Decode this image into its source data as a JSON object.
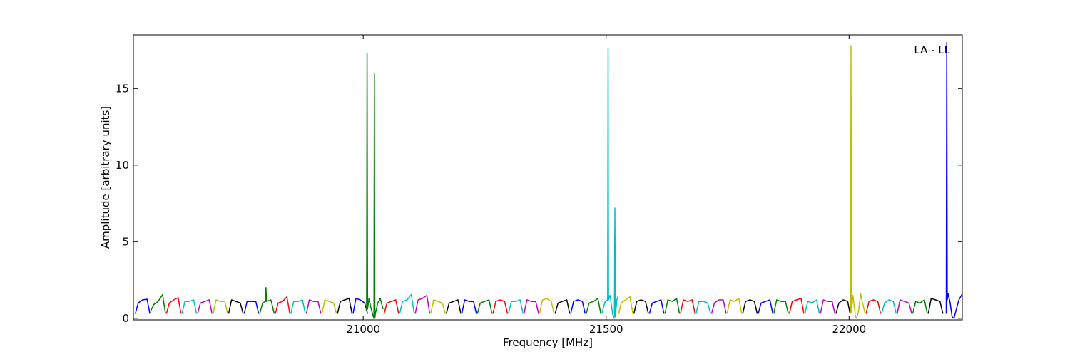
{
  "chart_data": {
    "type": "line",
    "xlabel": "Frequency [MHz]",
    "ylabel": "Amplitude [arbitrary units]",
    "annotation": "LA - LL",
    "xlim": [
      20527,
      22233
    ],
    "ylim": [
      -0.1,
      18.5
    ],
    "xticks": [
      21000,
      21500,
      22000
    ],
    "yticks": [
      0,
      5,
      10,
      15
    ],
    "series": [
      {
        "color": "#0000ff",
        "x": [
          20531,
          20537,
          20546,
          20555,
          20561
        ],
        "values": [
          0.3,
          1.0,
          1.2,
          1.25,
          0.3
        ]
      },
      {
        "color": "#008000",
        "x": [
          20563,
          20569,
          20578,
          20587,
          20593
        ],
        "values": [
          0.5,
          0.9,
          1.1,
          1.55,
          0.3
        ]
      },
      {
        "color": "#ff0000",
        "x": [
          20595,
          20601,
          20610,
          20619,
          20625
        ],
        "values": [
          0.3,
          1.0,
          1.2,
          1.35,
          0.3
        ]
      },
      {
        "color": "#00bfbf",
        "x": [
          20627,
          20633,
          20642,
          20651,
          20657
        ],
        "values": [
          0.3,
          1.1,
          1.1,
          1.2,
          0.3
        ]
      },
      {
        "color": "#bf00bf",
        "x": [
          20659,
          20665,
          20674,
          20683,
          20689
        ],
        "values": [
          0.3,
          1.0,
          1.1,
          1.2,
          0.3
        ]
      },
      {
        "color": "#bfbf00",
        "x": [
          20691,
          20697,
          20706,
          20715,
          20721
        ],
        "values": [
          0.3,
          1.2,
          1.1,
          1.1,
          0.3
        ]
      },
      {
        "color": "#000000",
        "x": [
          20723,
          20729,
          20738,
          20747,
          20753
        ],
        "values": [
          0.3,
          1.2,
          1.1,
          1.0,
          0.3
        ]
      },
      {
        "color": "#0000ff",
        "x": [
          20755,
          20761,
          20770,
          20779,
          20785
        ],
        "values": [
          0.3,
          1.1,
          1.1,
          1.1,
          0.3
        ]
      },
      {
        "color": "#008000",
        "x": [
          20787,
          20793,
          20799,
          20800,
          20801,
          20810,
          20817
        ],
        "values": [
          0.3,
          1.0,
          1.1,
          2.0,
          1.1,
          1.2,
          0.3
        ]
      },
      {
        "color": "#ff0000",
        "x": [
          20819,
          20825,
          20834,
          20843,
          20849
        ],
        "values": [
          0.3,
          1.0,
          1.1,
          1.4,
          0.3
        ]
      },
      {
        "color": "#00bfbf",
        "x": [
          20851,
          20857,
          20866,
          20875,
          20881
        ],
        "values": [
          0.3,
          1.1,
          1.1,
          1.2,
          0.3
        ]
      },
      {
        "color": "#bf00bf",
        "x": [
          20883,
          20889,
          20898,
          20907,
          20913
        ],
        "values": [
          0.3,
          1.2,
          1.1,
          1.1,
          0.3
        ]
      },
      {
        "color": "#bfbf00",
        "x": [
          20915,
          20921,
          20930,
          20939,
          20945
        ],
        "values": [
          0.3,
          1.2,
          1.1,
          1.0,
          0.3
        ]
      },
      {
        "color": "#000000",
        "x": [
          20947,
          20953,
          20962,
          20971,
          20977
        ],
        "values": [
          0.3,
          1.1,
          1.2,
          1.3,
          0.3
        ]
      },
      {
        "color": "#0000ff",
        "x": [
          20979,
          20985,
          20994,
          21003,
          21009
        ],
        "values": [
          0.3,
          1.3,
          1.2,
          1.0,
          0.3
        ]
      },
      {
        "color": "#008000",
        "x": [
          21007,
          21008,
          21009,
          21012,
          21015,
          21020,
          21022,
          21023,
          21024,
          21025,
          21030,
          21035,
          21041
        ],
        "values": [
          0.5,
          17.3,
          0.6,
          1.3,
          0.8,
          0.2,
          0.0,
          16.0,
          0.0,
          0.3,
          1.0,
          1.3,
          0.6
        ]
      },
      {
        "color": "#ff0000",
        "x": [
          21043,
          21049,
          21058,
          21067,
          21073
        ],
        "values": [
          0.3,
          1.0,
          1.1,
          1.2,
          0.3
        ]
      },
      {
        "color": "#00bfbf",
        "x": [
          21075,
          21081,
          21090,
          21099,
          21105
        ],
        "values": [
          0.3,
          1.1,
          1.2,
          1.55,
          0.3
        ]
      },
      {
        "color": "#bf00bf",
        "x": [
          21107,
          21113,
          21122,
          21131,
          21137
        ],
        "values": [
          0.3,
          1.2,
          1.3,
          1.5,
          0.3
        ]
      },
      {
        "color": "#bfbf00",
        "x": [
          21139,
          21145,
          21154,
          21163,
          21169
        ],
        "values": [
          0.3,
          1.2,
          1.1,
          1.0,
          0.3
        ]
      },
      {
        "color": "#000000",
        "x": [
          21171,
          21177,
          21186,
          21195,
          21201
        ],
        "values": [
          0.3,
          1.0,
          1.1,
          1.2,
          0.3
        ]
      },
      {
        "color": "#0000ff",
        "x": [
          21203,
          21209,
          21218,
          21227,
          21233
        ],
        "values": [
          0.3,
          1.2,
          1.1,
          1.1,
          0.3
        ]
      },
      {
        "color": "#008000",
        "x": [
          21235,
          21241,
          21250,
          21259,
          21265
        ],
        "values": [
          0.3,
          1.0,
          1.1,
          1.2,
          0.3
        ]
      },
      {
        "color": "#ff0000",
        "x": [
          21267,
          21273,
          21282,
          21291,
          21297
        ],
        "values": [
          0.3,
          1.1,
          1.2,
          1.1,
          0.3
        ]
      },
      {
        "color": "#00bfbf",
        "x": [
          21299,
          21305,
          21314,
          21323,
          21329
        ],
        "values": [
          0.3,
          1.1,
          1.1,
          1.2,
          0.3
        ]
      },
      {
        "color": "#bf00bf",
        "x": [
          21331,
          21337,
          21346,
          21355,
          21361
        ],
        "values": [
          0.3,
          1.2,
          1.1,
          1.1,
          0.3
        ]
      },
      {
        "color": "#bfbf00",
        "x": [
          21363,
          21369,
          21378,
          21387,
          21393
        ],
        "values": [
          0.3,
          1.2,
          1.3,
          1.1,
          0.3
        ]
      },
      {
        "color": "#000000",
        "x": [
          21395,
          21401,
          21410,
          21419,
          21425
        ],
        "values": [
          0.3,
          1.0,
          1.1,
          1.2,
          0.3
        ]
      },
      {
        "color": "#0000ff",
        "x": [
          21427,
          21433,
          21442,
          21451,
          21457
        ],
        "values": [
          0.3,
          1.1,
          1.2,
          1.1,
          0.3
        ]
      },
      {
        "color": "#008000",
        "x": [
          21459,
          21465,
          21474,
          21483,
          21489
        ],
        "values": [
          0.3,
          1.0,
          1.1,
          1.3,
          0.3
        ]
      },
      {
        "color": "#00bfbf",
        "x": [
          21491,
          21498,
          21503,
          21504,
          21505,
          21508,
          21512,
          21515,
          21517,
          21518,
          21519,
          21522,
          21525
        ],
        "values": [
          0.3,
          1.1,
          1.2,
          17.6,
          1.2,
          1.5,
          0.6,
          0.0,
          0.1,
          7.2,
          0.1,
          1.2,
          1.5
        ]
      },
      {
        "color": "#bfbf00",
        "x": [
          21526,
          21531,
          21540,
          21549,
          21555
        ],
        "values": [
          0.3,
          1.0,
          1.2,
          1.4,
          0.3
        ]
      },
      {
        "color": "#000000",
        "x": [
          21557,
          21563,
          21572,
          21581,
          21587
        ],
        "values": [
          0.3,
          1.1,
          1.2,
          1.1,
          0.3
        ]
      },
      {
        "color": "#0000ff",
        "x": [
          21589,
          21595,
          21604,
          21613,
          21619
        ],
        "values": [
          0.3,
          1.0,
          1.1,
          1.2,
          0.3
        ]
      },
      {
        "color": "#008000",
        "x": [
          21621,
          21627,
          21636,
          21645,
          21651
        ],
        "values": [
          0.3,
          1.2,
          1.1,
          1.3,
          0.3
        ]
      },
      {
        "color": "#ff0000",
        "x": [
          21653,
          21659,
          21668,
          21677,
          21683
        ],
        "values": [
          0.3,
          1.2,
          1.1,
          1.2,
          0.3
        ]
      },
      {
        "color": "#00bfbf",
        "x": [
          21685,
          21691,
          21700,
          21709,
          21715
        ],
        "values": [
          0.3,
          1.1,
          1.1,
          1.0,
          0.3
        ]
      },
      {
        "color": "#bf00bf",
        "x": [
          21717,
          21723,
          21732,
          21741,
          21747
        ],
        "values": [
          0.3,
          1.0,
          1.2,
          1.2,
          0.3
        ]
      },
      {
        "color": "#bfbf00",
        "x": [
          21749,
          21755,
          21764,
          21773,
          21779
        ],
        "values": [
          0.3,
          1.2,
          1.1,
          1.3,
          0.3
        ]
      },
      {
        "color": "#000000",
        "x": [
          21781,
          21787,
          21796,
          21805,
          21811
        ],
        "values": [
          0.3,
          1.1,
          1.2,
          1.1,
          0.3
        ]
      },
      {
        "color": "#0000ff",
        "x": [
          21813,
          21819,
          21828,
          21837,
          21843
        ],
        "values": [
          0.3,
          1.0,
          1.1,
          1.2,
          0.3
        ]
      },
      {
        "color": "#008000",
        "x": [
          21845,
          21851,
          21860,
          21869,
          21875
        ],
        "values": [
          0.3,
          1.2,
          1.1,
          1.1,
          0.3
        ]
      },
      {
        "color": "#ff0000",
        "x": [
          21877,
          21883,
          21892,
          21901,
          21907
        ],
        "values": [
          0.3,
          1.1,
          1.2,
          1.3,
          0.3
        ]
      },
      {
        "color": "#00bfbf",
        "x": [
          21909,
          21915,
          21924,
          21933,
          21939
        ],
        "values": [
          0.3,
          1.1,
          1.0,
          1.2,
          0.3
        ]
      },
      {
        "color": "#bf00bf",
        "x": [
          21941,
          21947,
          21956,
          21965,
          21971
        ],
        "values": [
          0.3,
          1.2,
          1.1,
          1.1,
          0.3
        ]
      },
      {
        "color": "#000000",
        "x": [
          21973,
          21979,
          21988,
          21997,
          22002
        ],
        "values": [
          0.3,
          1.0,
          1.2,
          1.1,
          0.3
        ]
      },
      {
        "color": "#bfbf00",
        "x": [
          22003,
          22004,
          22005,
          22008,
          22013,
          22016,
          22020,
          22024,
          22027,
          22033
        ],
        "values": [
          0.3,
          17.8,
          0.4,
          1.5,
          0.1,
          0.0,
          0.6,
          1.6,
          1.1,
          0.3
        ]
      },
      {
        "color": "#ff0000",
        "x": [
          22035,
          22041,
          22050,
          22059,
          22065
        ],
        "values": [
          0.3,
          1.1,
          1.2,
          1.1,
          0.3
        ]
      },
      {
        "color": "#00bfbf",
        "x": [
          22067,
          22073,
          22082,
          22091,
          22097
        ],
        "values": [
          0.3,
          1.0,
          1.2,
          1.1,
          0.3
        ]
      },
      {
        "color": "#bf00bf",
        "x": [
          22099,
          22105,
          22114,
          22123,
          22129
        ],
        "values": [
          0.3,
          1.2,
          1.1,
          1.0,
          0.3
        ]
      },
      {
        "color": "#008000",
        "x": [
          22131,
          22137,
          22146,
          22155,
          22161
        ],
        "values": [
          0.3,
          1.1,
          1.0,
          1.2,
          0.3
        ]
      },
      {
        "color": "#000000",
        "x": [
          22163,
          22169,
          22178,
          22187,
          22193
        ],
        "values": [
          0.3,
          1.3,
          1.2,
          1.1,
          0.3
        ]
      },
      {
        "color": "#0000ff",
        "x": [
          22200,
          22201,
          22202,
          22204,
          22208,
          22212,
          22216,
          22220,
          22226,
          22233
        ],
        "values": [
          0.3,
          18.0,
          1.2,
          1.6,
          1.0,
          0.1,
          0.0,
          0.5,
          1.2,
          1.6
        ]
      }
    ]
  }
}
